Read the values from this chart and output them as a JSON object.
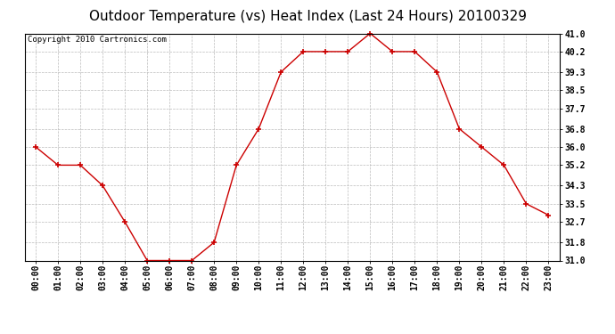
{
  "title": "Outdoor Temperature (vs) Heat Index (Last 24 Hours) 20100329",
  "copyright": "Copyright 2010 Cartronics.com",
  "x_labels": [
    "00:00",
    "01:00",
    "02:00",
    "03:00",
    "04:00",
    "05:00",
    "06:00",
    "07:00",
    "08:00",
    "09:00",
    "10:00",
    "11:00",
    "12:00",
    "13:00",
    "14:00",
    "15:00",
    "16:00",
    "17:00",
    "18:00",
    "19:00",
    "20:00",
    "21:00",
    "22:00",
    "23:00"
  ],
  "y_values": [
    36.0,
    35.2,
    35.2,
    34.3,
    32.7,
    31.0,
    31.0,
    31.0,
    31.8,
    35.2,
    36.8,
    39.3,
    40.2,
    40.2,
    40.2,
    41.0,
    40.2,
    40.2,
    39.3,
    36.8,
    36.0,
    35.2,
    33.5,
    33.0
  ],
  "ylim": [
    31.0,
    41.0
  ],
  "y_ticks": [
    31.0,
    31.8,
    32.7,
    33.5,
    34.3,
    35.2,
    36.0,
    36.8,
    37.7,
    38.5,
    39.3,
    40.2,
    41.0
  ],
  "line_color": "#cc0000",
  "marker": "+",
  "marker_size": 5,
  "marker_linewidth": 1.2,
  "line_width": 1.0,
  "grid_color": "#bbbbbb",
  "bg_color": "#ffffff",
  "title_fontsize": 11,
  "tick_fontsize": 7,
  "copyright_fontsize": 6.5
}
